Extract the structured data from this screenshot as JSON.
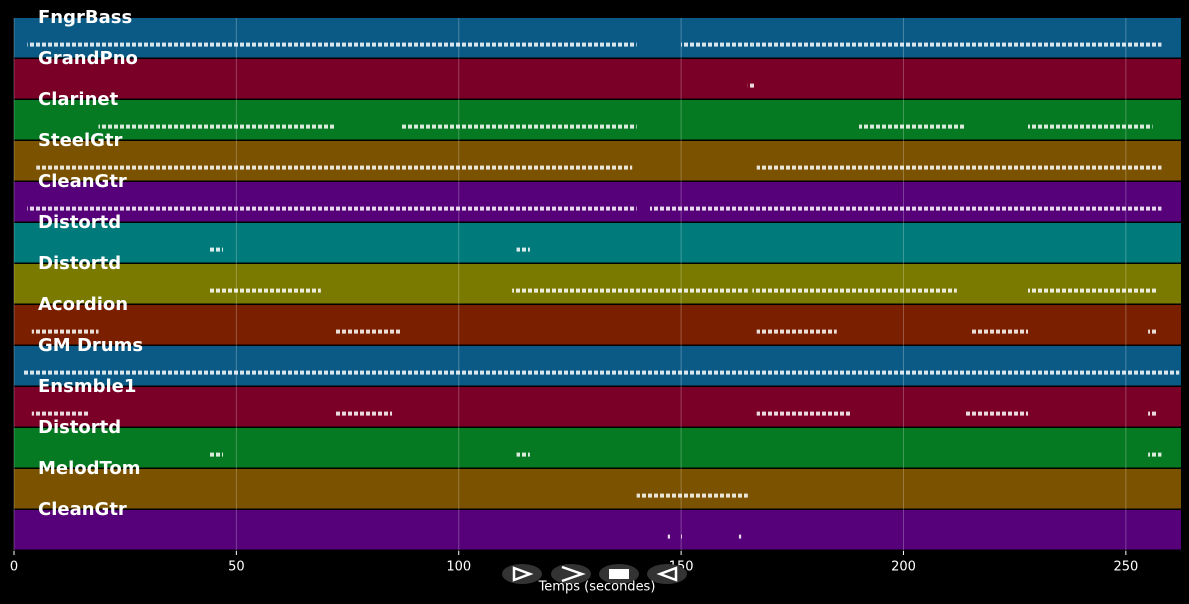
{
  "chart_data": {
    "type": "pianoroll",
    "x_label": "Temps (secondes)",
    "xlim": [
      0,
      262.4
    ],
    "xticks": [
      0,
      50,
      100,
      150,
      200,
      250
    ],
    "grid": true,
    "tracks": [
      {
        "name": "FngrBass",
        "color": "#0b5a86",
        "segments": [
          [
            3,
            140
          ],
          [
            150,
            166
          ],
          [
            166,
            258
          ]
        ]
      },
      {
        "name": "GrandPno",
        "color": "#7a0028",
        "segments": [
          [
            165,
            166.5
          ]
        ]
      },
      {
        "name": "Clarinet",
        "color": "#067a22",
        "segments": [
          [
            19,
            72
          ],
          [
            87,
            140
          ],
          [
            190,
            214
          ],
          [
            228,
            256
          ]
        ]
      },
      {
        "name": "SteelGtr",
        "color": "#7a5200",
        "segments": [
          [
            5,
            139
          ],
          [
            167,
            258
          ]
        ]
      },
      {
        "name": "CleanGtr",
        "color": "#56007a",
        "segments": [
          [
            3,
            140
          ],
          [
            143,
            166
          ],
          [
            166,
            258
          ]
        ]
      },
      {
        "name": "Distortd",
        "color": "#007a7a",
        "segments": [
          [
            44,
            47
          ],
          [
            113,
            116
          ]
        ]
      },
      {
        "name": "Distortd",
        "color": "#7a7a00",
        "segments": [
          [
            44,
            69
          ],
          [
            112,
            140
          ],
          [
            140,
            165
          ],
          [
            166,
            212
          ],
          [
            228,
            257
          ]
        ]
      },
      {
        "name": "Acordion",
        "color": "#7a2000",
        "segments": [
          [
            4,
            19
          ],
          [
            72,
            87
          ],
          [
            167,
            185
          ],
          [
            215,
            228
          ],
          [
            255,
            257
          ]
        ]
      },
      {
        "name": "GM Drums",
        "color": "#0b5a86",
        "segments": [
          [
            2,
            258
          ],
          [
            258,
            262
          ]
        ]
      },
      {
        "name": "Ensmble1",
        "color": "#7a0028",
        "segments": [
          [
            4,
            17
          ],
          [
            72,
            85
          ],
          [
            167,
            188
          ],
          [
            214,
            228
          ],
          [
            255,
            257
          ]
        ]
      },
      {
        "name": "Distortd",
        "color": "#067a22",
        "segments": [
          [
            44,
            47
          ],
          [
            113,
            116
          ],
          [
            255,
            258
          ]
        ]
      },
      {
        "name": "MelodTom",
        "color": "#7a5200",
        "segments": [
          [
            140,
            165
          ]
        ]
      },
      {
        "name": "CleanGtr",
        "color": "#56007a",
        "segments": [
          [
            147,
            147.5
          ],
          [
            150,
            150.5
          ],
          [
            163,
            163.5
          ]
        ]
      }
    ]
  }
}
